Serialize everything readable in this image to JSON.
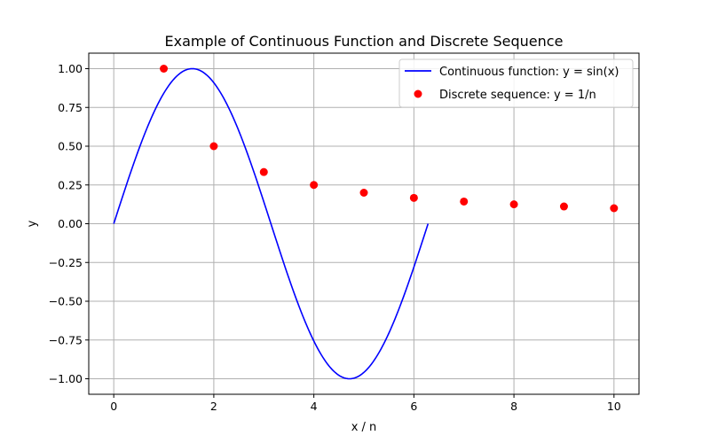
{
  "chart_data": {
    "type": "line",
    "title": "Example of Continuous Function and Discrete Sequence",
    "xlabel": "x / n",
    "ylabel": "y",
    "xlim": [
      -0.5,
      10.5
    ],
    "ylim": [
      -1.1,
      1.1
    ],
    "x_ticks": [
      0,
      2,
      4,
      6,
      8,
      10
    ],
    "x_tick_labels": [
      "0",
      "2",
      "4",
      "6",
      "8",
      "10"
    ],
    "y_ticks": [
      -1.0,
      -0.75,
      -0.5,
      -0.25,
      0.0,
      0.25,
      0.5,
      0.75,
      1.0
    ],
    "y_tick_labels": [
      "−1.00",
      "−0.75",
      "−0.50",
      "−0.25",
      "0.00",
      "0.25",
      "0.50",
      "0.75",
      "1.00"
    ],
    "grid": true,
    "legend_position": "top-right",
    "series": [
      {
        "name": "Continuous function: y = sin(x)",
        "type": "line",
        "color": "#0000ff",
        "function": "sin",
        "x_range": [
          0,
          6.2832
        ],
        "x": [
          0,
          0.5236,
          1.0472,
          1.5708,
          2.0944,
          2.618,
          3.1416,
          3.6652,
          4.1888,
          4.7124,
          5.236,
          5.7596,
          6.2832
        ],
        "y": [
          0,
          0.5,
          0.866,
          1.0,
          0.866,
          0.5,
          0,
          -0.5,
          -0.866,
          -1.0,
          -0.866,
          -0.5,
          0
        ]
      },
      {
        "name": "Discrete sequence: y = 1/n",
        "type": "scatter",
        "color": "#ff0000",
        "x": [
          1,
          2,
          3,
          4,
          5,
          6,
          7,
          8,
          9,
          10
        ],
        "y": [
          1.0,
          0.5,
          0.3333,
          0.25,
          0.2,
          0.1667,
          0.1429,
          0.125,
          0.1111,
          0.1
        ]
      }
    ]
  }
}
